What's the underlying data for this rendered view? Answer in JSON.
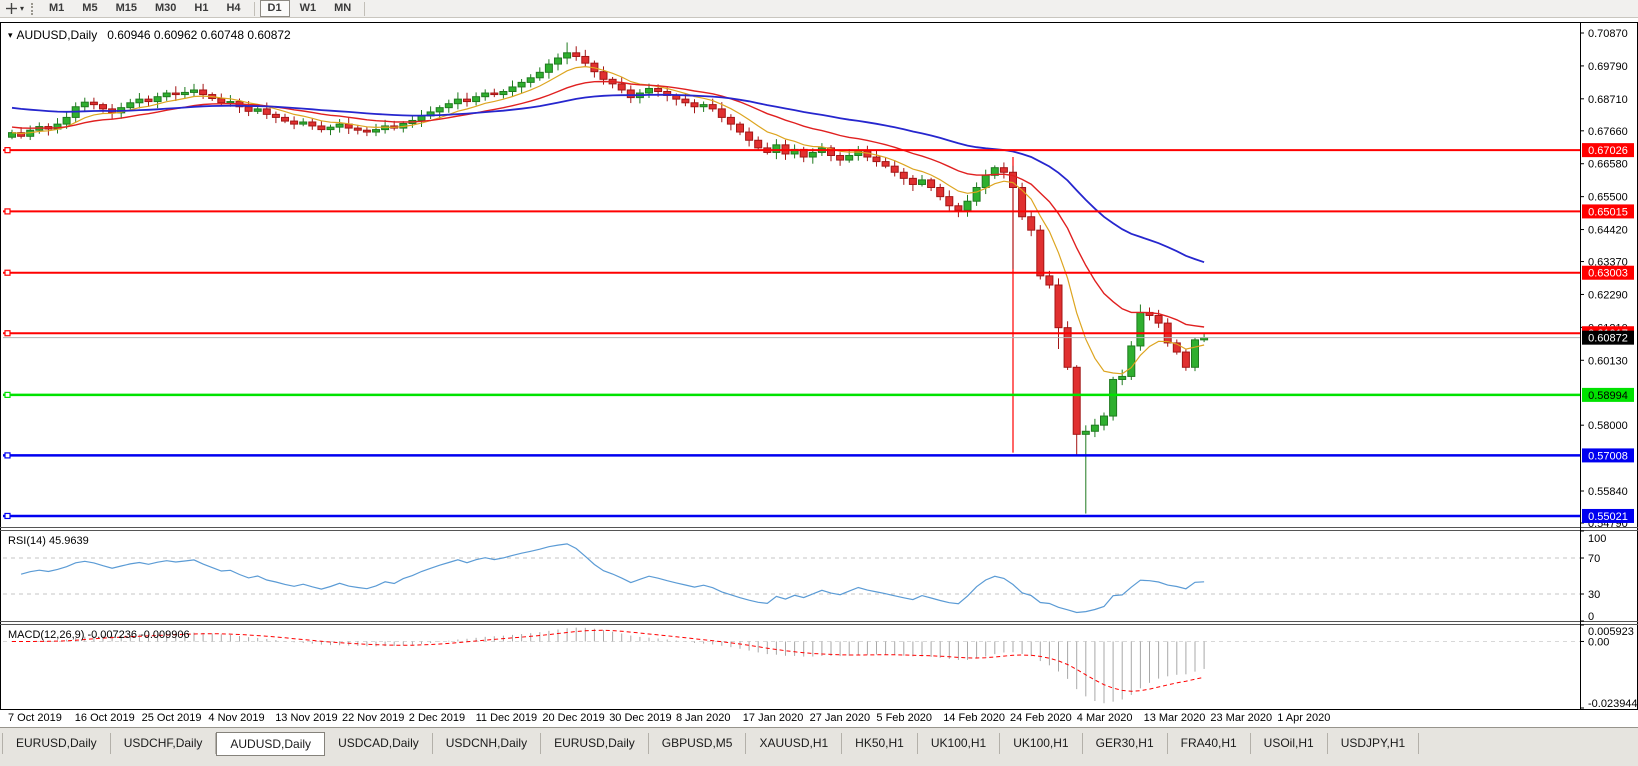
{
  "toolbar": {
    "timeframes": [
      "M1",
      "M5",
      "M15",
      "M30",
      "H1",
      "H4",
      "D1",
      "W1",
      "MN"
    ],
    "active_timeframe": "D1",
    "separators_after": [
      "H4",
      "MN"
    ]
  },
  "icons": {
    "window_menu": "▾",
    "caret": "▾",
    "tool": "crosshair-icon"
  },
  "chart": {
    "title_symbol": "AUDUSD,Daily",
    "title_ohlc": "0.60946 0.60962 0.60748 0.60872"
  },
  "rsi": {
    "label": "RSI(14) 45.9639",
    "period": 14,
    "line_color": "#5b9bd5",
    "levels": [
      {
        "label": "100",
        "value": 100
      },
      {
        "label": "70",
        "value": 70
      },
      {
        "label": "30",
        "value": 30
      },
      {
        "label": "0",
        "value": 0
      }
    ],
    "dashed_levels": [
      70,
      30
    ]
  },
  "macd": {
    "label": "MACD(12,26,9) -0.007236 -0.009906",
    "fast": 12,
    "slow": 26,
    "signal": 9,
    "max": 0.005923,
    "min": -0.023944,
    "ticks": [
      {
        "label": "0.005923",
        "value": 0.005923
      },
      {
        "label": "0.00",
        "value": 0.0
      },
      {
        "label": "-0.023944",
        "value": -0.023944
      }
    ],
    "histogram_color": "#a8a8a8",
    "signal_color": "#ff0000"
  },
  "dates": [
    "7 Oct 2019",
    "16 Oct 2019",
    "25 Oct 2019",
    "4 Nov 2019",
    "13 Nov 2019",
    "22 Nov 2019",
    "2 Dec 2019",
    "11 Dec 2019",
    "20 Dec 2019",
    "30 Dec 2019",
    "8 Jan 2020",
    "17 Jan 2020",
    "27 Jan 2020",
    "5 Feb 2020",
    "14 Feb 2020",
    "24 Feb 2020",
    "4 Mar 2020",
    "13 Mar 2020",
    "23 Mar 2020",
    "1 Apr 2020"
  ],
  "tabs": {
    "active_index": 2,
    "items": [
      "EURUSD,Daily",
      "USDCHF,Daily",
      "AUDUSD,Daily",
      "USDCAD,Daily",
      "USDCNH,Daily",
      "EURUSD,Daily",
      "GBPUSD,M5",
      "XAUUSD,H1",
      "HK50,H1",
      "UK100,H1",
      "UK100,H1",
      "GER30,H1",
      "FRA40,H1",
      "USOil,H1",
      "USDJPY,H1"
    ]
  },
  "chart_data": {
    "type": "candlestick",
    "symbol": "AUDUSD",
    "timeframe": "Daily",
    "price_axis": {
      "top_price": 0.7087,
      "bottom_price": 0.5479,
      "ticks": [
        {
          "label": "0.70870",
          "value": 0.7087
        },
        {
          "label": "0.69790",
          "value": 0.6979
        },
        {
          "label": "0.68710",
          "value": 0.6871
        },
        {
          "label": "0.67660",
          "value": 0.6766
        },
        {
          "label": "0.66580",
          "value": 0.6658
        },
        {
          "label": "0.65500",
          "value": 0.655
        },
        {
          "label": "0.64420",
          "value": 0.6442
        },
        {
          "label": "0.63370",
          "value": 0.6337
        },
        {
          "label": "0.62290",
          "value": 0.6229
        },
        {
          "label": "0.61210",
          "value": 0.6121
        },
        {
          "label": "0.60130",
          "value": 0.6013
        },
        {
          "label": "0.58000",
          "value": 0.58
        },
        {
          "label": "0.55840",
          "value": 0.5584
        },
        {
          "label": "0.54790",
          "value": 0.5479
        }
      ]
    },
    "h_lines": [
      {
        "price": 0.67026,
        "label": "0.67026",
        "color": "#ff0000",
        "text_color": "#ffffff",
        "width": 2
      },
      {
        "price": 0.65015,
        "label": "0.65015",
        "color": "#ff0000",
        "text_color": "#ffffff",
        "width": 2
      },
      {
        "price": 0.63003,
        "label": "0.63003",
        "color": "#ff0000",
        "text_color": "#ffffff",
        "width": 2
      },
      {
        "price": 0.61017,
        "label": "0.61017",
        "color": "#ff0000",
        "text_color": "#ffffff",
        "width": 2
      },
      {
        "price": 0.58994,
        "label": "0.58994",
        "color": "#00e200",
        "text_color": "#000000",
        "width": 2.5
      },
      {
        "price": 0.57008,
        "label": "0.57008",
        "color": "#0000f0",
        "text_color": "#ffffff",
        "width": 2.5
      },
      {
        "price": 0.55021,
        "label": "0.55021",
        "color": "#0000f0",
        "text_color": "#ffffff",
        "width": 2.5
      }
    ],
    "current_price": {
      "price": 0.60872,
      "label": "0.60872",
      "line_color": "#b4b4b4",
      "bg": "#000000",
      "text_color": "#ffffff"
    },
    "v_line": {
      "bar_index": 110,
      "from_price": 0.668,
      "to_price": 0.571,
      "color": "#ff0000"
    },
    "first_open": 0.6745,
    "default_wick": 0.0016,
    "wick_overrides": {
      "61": {
        "high": 0.7056
      },
      "110": {
        "low": 0.6313
      },
      "115": {
        "low": 0.605
      },
      "117": {
        "low": 0.57
      },
      "118": {
        "low": 0.551
      },
      "124": {
        "high": 0.6196
      }
    },
    "closes": [
      0.676,
      0.6748,
      0.6768,
      0.678,
      0.6772,
      0.6788,
      0.681,
      0.6845,
      0.686,
      0.6852,
      0.6838,
      0.6825,
      0.6842,
      0.6858,
      0.687,
      0.6862,
      0.6878,
      0.689,
      0.6885,
      0.6892,
      0.69,
      0.6885,
      0.6872,
      0.6858,
      0.6862,
      0.6845,
      0.683,
      0.6838,
      0.682,
      0.681,
      0.6798,
      0.6788,
      0.6795,
      0.6782,
      0.677,
      0.6778,
      0.6788,
      0.6775,
      0.6768,
      0.6762,
      0.677,
      0.6782,
      0.6775,
      0.679,
      0.68,
      0.6815,
      0.6828,
      0.6842,
      0.6855,
      0.687,
      0.6862,
      0.6878,
      0.689,
      0.6885,
      0.6895,
      0.691,
      0.6925,
      0.694,
      0.6958,
      0.6985,
      0.7005,
      0.7022,
      0.701,
      0.6988,
      0.696,
      0.6935,
      0.692,
      0.69,
      0.6875,
      0.689,
      0.6905,
      0.6895,
      0.6882,
      0.687,
      0.6858,
      0.6845,
      0.6852,
      0.6838,
      0.681,
      0.6788,
      0.6762,
      0.6735,
      0.671,
      0.6695,
      0.672,
      0.669,
      0.6705,
      0.668,
      0.6695,
      0.671,
      0.6685,
      0.667,
      0.6685,
      0.67,
      0.668,
      0.6665,
      0.665,
      0.663,
      0.661,
      0.659,
      0.6605,
      0.658,
      0.655,
      0.652,
      0.6505,
      0.6535,
      0.658,
      0.662,
      0.6645,
      0.663,
      0.658,
      0.6484,
      0.644,
      0.629,
      0.626,
      0.612,
      0.599,
      0.577,
      0.578,
      0.58,
      0.583,
      0.595,
      0.596,
      0.606,
      0.617,
      0.616,
      0.6135,
      0.607,
      0.604,
      0.599,
      0.608,
      0.6087
    ],
    "bull_color": "#2faf2f",
    "bull_stroke": "#1f7a1f",
    "bear_color": "#e03030",
    "bear_stroke": "#a31515",
    "moving_averages": [
      {
        "name": "fast",
        "period": 8,
        "color": "#dda520",
        "width": 1.2,
        "seed": 0.676
      },
      {
        "name": "medium",
        "period": 20,
        "color": "#e02020",
        "width": 1.4,
        "seed": 0.678
      },
      {
        "name": "slow",
        "period": 50,
        "color": "#2626ce",
        "width": 1.8,
        "seed": 0.6845
      }
    ]
  }
}
